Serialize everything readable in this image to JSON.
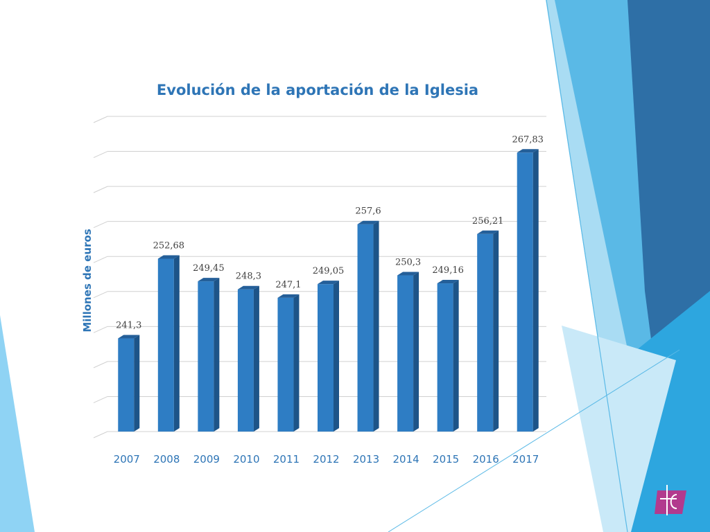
{
  "chart_data": {
    "type": "bar",
    "title": "Evolución de la aportación de la Iglesia",
    "ylabel": "Millones de euros",
    "xlabel": "",
    "categories": [
      "2007",
      "2008",
      "2009",
      "2010",
      "2011",
      "2012",
      "2013",
      "2014",
      "2015",
      "2016",
      "2017"
    ],
    "values": [
      241.3,
      252.68,
      249.45,
      248.3,
      247.1,
      249.05,
      257.6,
      250.3,
      249.16,
      256.21,
      267.83
    ],
    "value_labels": [
      "241,3",
      "252,68",
      "249,45",
      "248,3",
      "247,1",
      "249,05",
      "257,6",
      "250,3",
      "249,16",
      "256,21",
      "267,83"
    ],
    "ylim": [
      228,
      273
    ],
    "grid": true,
    "legend": "none",
    "bar_color": "#2e7dc4",
    "bar_side_color": "#1d5488",
    "bar_top_color": "#245f99"
  },
  "colors": {
    "title": "#2e75b6",
    "axis_text": "#2e75b6",
    "label_text": "#404040",
    "grid": "#d0d0d0"
  },
  "logo": {
    "icon": "church-cross-logo-icon"
  }
}
